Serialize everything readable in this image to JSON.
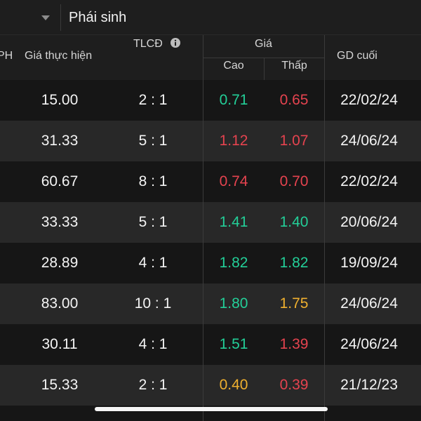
{
  "topbar": {
    "dropdown_icon": "chevron-down-icon",
    "title": "Phái sinh"
  },
  "header": {
    "truncated_col": "PH",
    "strike": "Giá thực hiện",
    "ratio": "TLCĐ",
    "ratio_info_icon": "info-icon",
    "price_group": "Giá",
    "high": "Cao",
    "low": "Thấp",
    "last_trade": "GD cuối"
  },
  "rows": [
    {
      "strike": "15.00",
      "ratio": "2 : 1",
      "high": {
        "value": "0.71",
        "color": "#23cf98"
      },
      "low": {
        "value": "0.65",
        "color": "#e5434f"
      },
      "last_trade": "22/02/24"
    },
    {
      "strike": "31.33",
      "ratio": "5 : 1",
      "high": {
        "value": "1.12",
        "color": "#e5434f"
      },
      "low": {
        "value": "1.07",
        "color": "#e5434f"
      },
      "last_trade": "24/06/24"
    },
    {
      "strike": "60.67",
      "ratio": "8 : 1",
      "high": {
        "value": "0.74",
        "color": "#e5434f"
      },
      "low": {
        "value": "0.70",
        "color": "#e5434f"
      },
      "last_trade": "22/02/24"
    },
    {
      "strike": "33.33",
      "ratio": "5 : 1",
      "high": {
        "value": "1.41",
        "color": "#23cf98"
      },
      "low": {
        "value": "1.40",
        "color": "#23cf98"
      },
      "last_trade": "20/06/24"
    },
    {
      "strike": "28.89",
      "ratio": "4 : 1",
      "high": {
        "value": "1.82",
        "color": "#23cf98"
      },
      "low": {
        "value": "1.82",
        "color": "#23cf98"
      },
      "last_trade": "19/09/24"
    },
    {
      "strike": "83.00",
      "ratio": "10 : 1",
      "high": {
        "value": "1.80",
        "color": "#23cf98"
      },
      "low": {
        "value": "1.75",
        "color": "#efb02f"
      },
      "last_trade": "24/06/24"
    },
    {
      "strike": "30.11",
      "ratio": "4 : 1",
      "high": {
        "value": "1.51",
        "color": "#23cf98"
      },
      "low": {
        "value": "1.39",
        "color": "#e5434f"
      },
      "last_trade": "24/06/24"
    },
    {
      "strike": "15.33",
      "ratio": "2 : 1",
      "high": {
        "value": "0.40",
        "color": "#efb02f"
      },
      "low": {
        "value": "0.39",
        "color": "#e5434f"
      },
      "last_trade": "21/12/23"
    }
  ]
}
